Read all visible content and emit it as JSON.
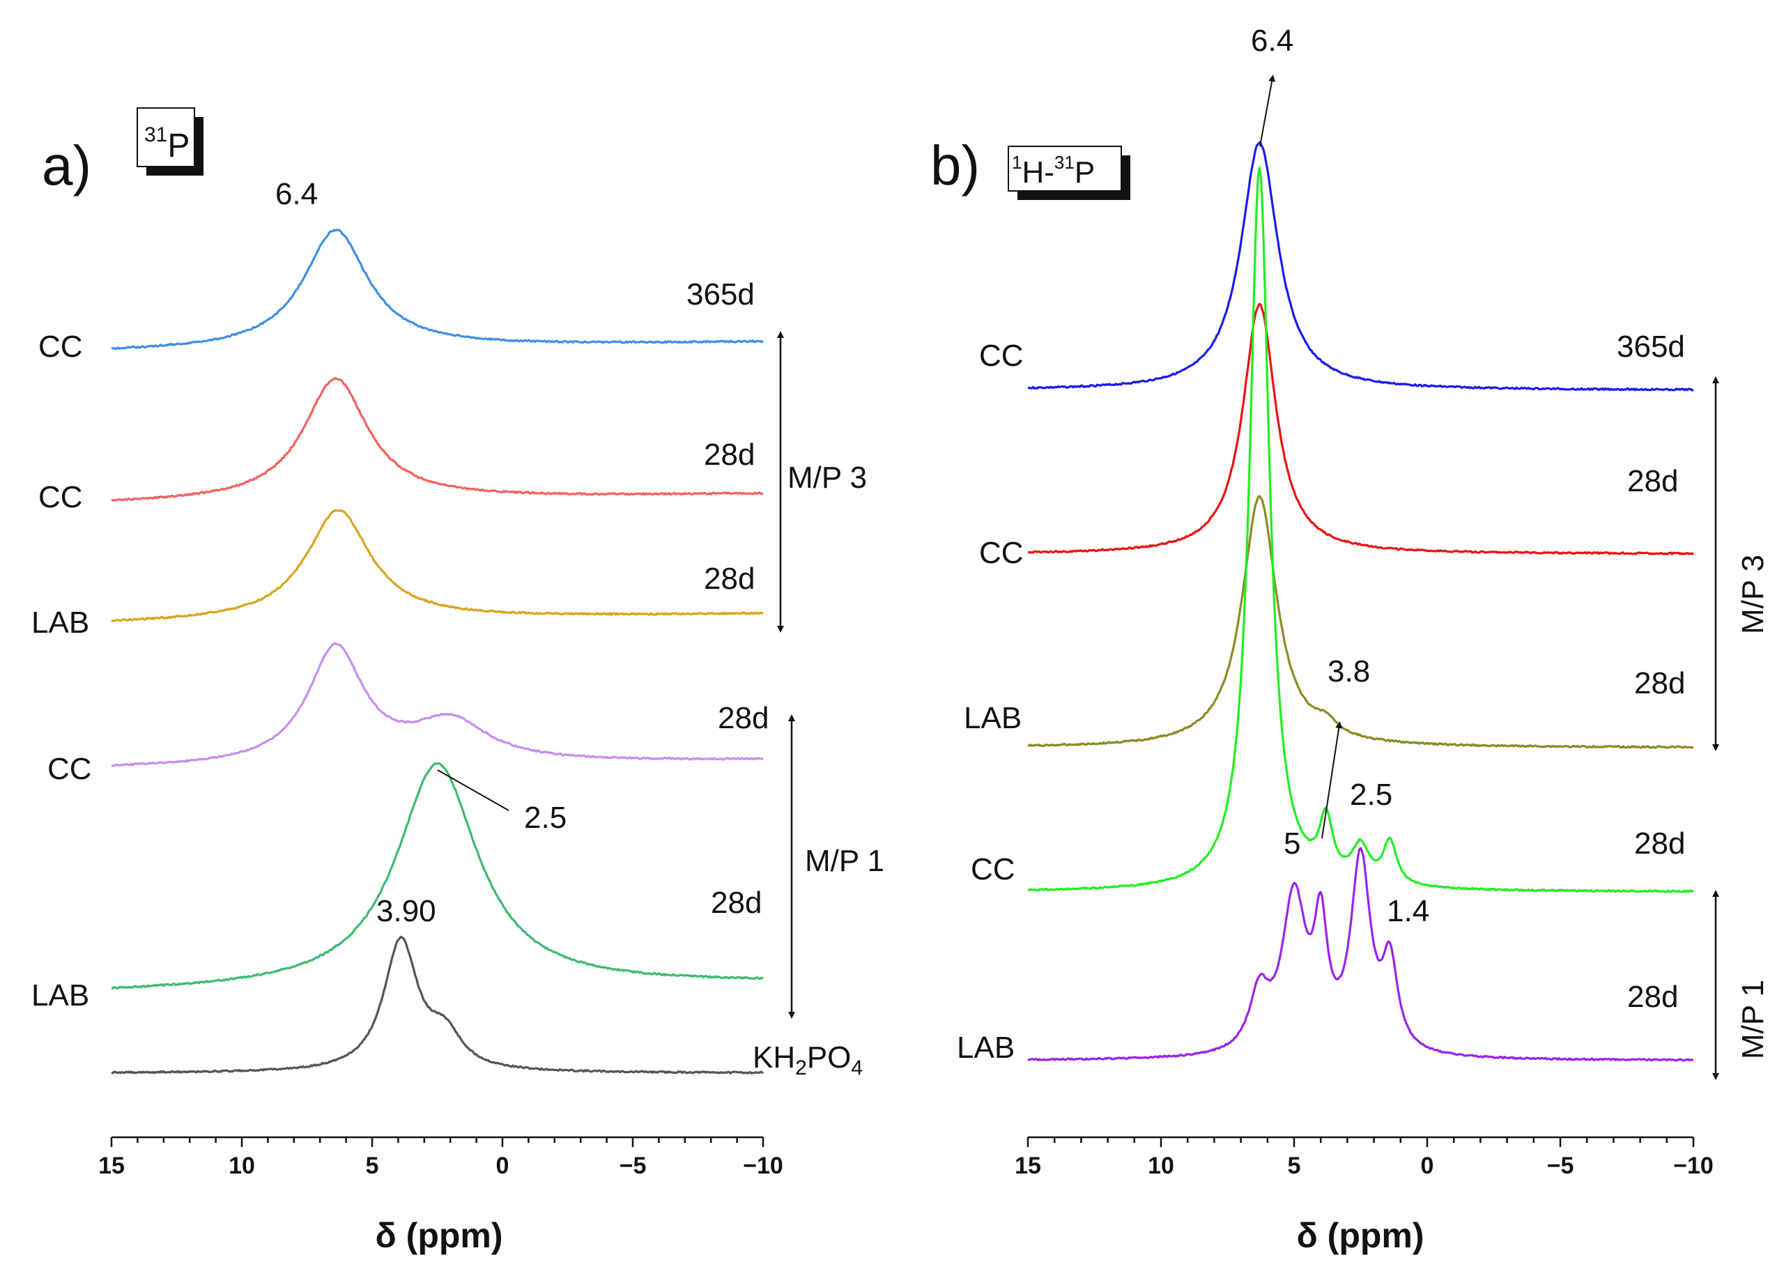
{
  "chart_data": [
    {
      "type": "line",
      "panel": "a)",
      "nucleus_prefix": "31",
      "nucleus_symbol": "P",
      "xlabel": "δ (ppm)",
      "xlim": [
        15,
        -10
      ],
      "xticks": [
        "15",
        "10",
        "5",
        "0",
        "−5",
        "−10"
      ],
      "series": [
        {
          "name": "CC",
          "age": "365d",
          "color": "#3f8fe8",
          "peaks": [
            [
              6.4,
              1.0,
              3.0
            ]
          ],
          "tail": 0.0
        },
        {
          "name": "CC",
          "age": "28d",
          "color": "#f2625e",
          "peaks": [
            [
              6.4,
              1.0,
              3.0
            ]
          ],
          "tail": 0.0
        },
        {
          "name": "LAB",
          "age": "28d",
          "color": "#d9a41e",
          "peaks": [
            [
              6.3,
              1.0,
              3.0
            ]
          ],
          "tail": 0.0
        },
        {
          "name": "CC",
          "age": "28d",
          "color": "#c78ef2",
          "peaks": [
            [
              6.4,
              1.0,
              2.6
            ],
            [
              2.0,
              0.35,
              3.5
            ]
          ],
          "tail": 0.0
        },
        {
          "name": "LAB",
          "age": "28d",
          "color": "#3dba70",
          "peaks": [
            [
              2.5,
              1.0,
              3.8
            ]
          ],
          "tail": 0.0
        },
        {
          "name": "",
          "age": "KH2PO4",
          "color": "#555555",
          "peaks": [
            [
              3.9,
              1.0,
              1.6
            ],
            [
              2.2,
              0.25,
              1.5
            ]
          ],
          "tail": 0.0
        }
      ],
      "groups": [
        {
          "label": "M/P 3",
          "series": [
            0,
            2
          ]
        },
        {
          "label": "M/P 1",
          "series": [
            3,
            4
          ]
        }
      ],
      "annotations": [
        "6.4",
        "2.5",
        "3.90"
      ]
    },
    {
      "type": "line",
      "panel": "b)",
      "nucleus_prefix": "1",
      "nucleus_symbol": "H-",
      "nucleus_prefix2": "31",
      "nucleus_symbol2": "P",
      "xlabel": "δ (ppm)",
      "xlim": [
        15,
        -10
      ],
      "xticks": [
        "15",
        "10",
        "5",
        "0",
        "−5",
        "−10"
      ],
      "series": [
        {
          "name": "CC",
          "age": "365d",
          "color": "#1a1aee",
          "peaks": [
            [
              6.3,
              1.0,
              1.7
            ]
          ]
        },
        {
          "name": "CC",
          "age": "28d",
          "color": "#ee1111",
          "peaks": [
            [
              6.3,
              1.0,
              1.5
            ]
          ]
        },
        {
          "name": "LAB",
          "age": "28d",
          "color": "#8b8b22",
          "peaks": [
            [
              6.3,
              1.0,
              1.6
            ],
            [
              3.8,
              0.05,
              1.0
            ]
          ]
        },
        {
          "name": "CC",
          "age": "28d",
          "color": "#22ee22",
          "peaks": [
            [
              6.3,
              1.0,
              0.9
            ],
            [
              3.8,
              0.08,
              0.6
            ],
            [
              2.5,
              0.05,
              0.8
            ],
            [
              1.4,
              0.06,
              0.6
            ]
          ]
        },
        {
          "name": "LAB",
          "age": "28d",
          "color": "#9922ee",
          "peaks": [
            [
              5.0,
              0.55,
              1.1
            ],
            [
              4.0,
              0.4,
              0.6
            ],
            [
              2.5,
              0.68,
              0.9
            ],
            [
              1.4,
              0.3,
              0.7
            ],
            [
              6.3,
              0.2,
              0.9
            ]
          ]
        }
      ],
      "groups": [
        {
          "label": "M/P 3",
          "series": [
            0,
            2
          ]
        },
        {
          "label": "M/P 1",
          "series": [
            4,
            4
          ]
        }
      ],
      "annotations": [
        "6.4",
        "3.8",
        "2.5",
        "5",
        "1.4"
      ]
    }
  ]
}
